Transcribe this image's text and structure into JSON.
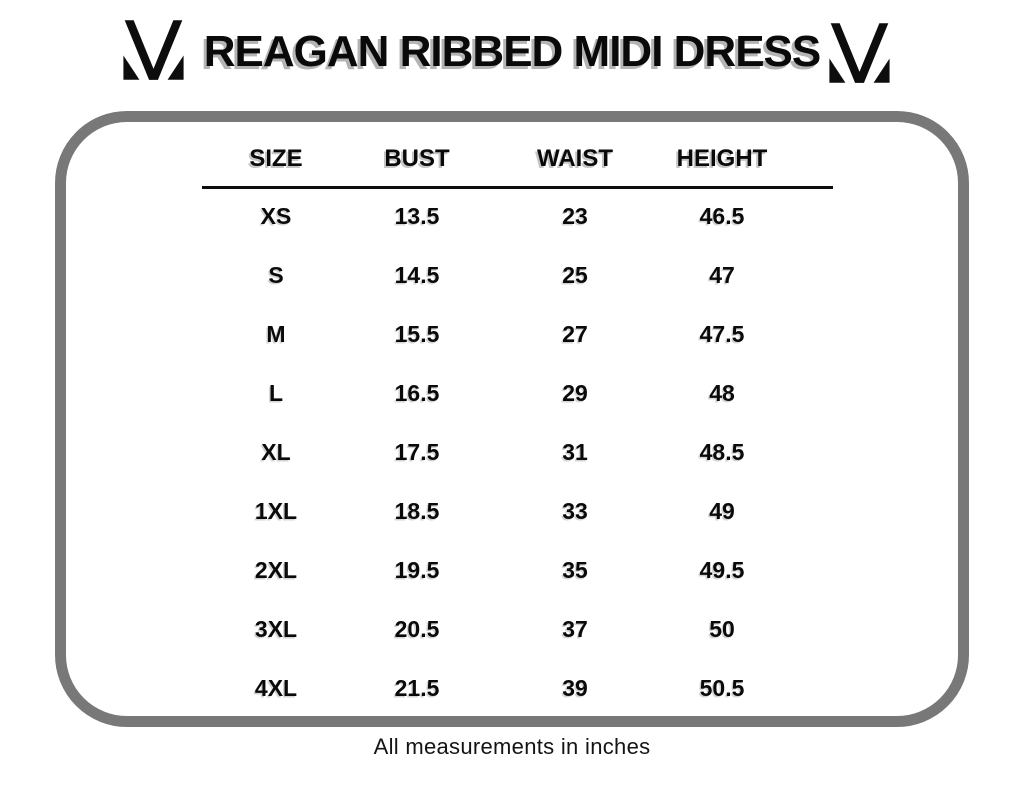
{
  "title": "REAGAN RIBBED MIDI DRESS",
  "footnote": "All measurements in inches",
  "logo": {
    "icon": "brand-v-mark-icon",
    "color": "#0d0d0d"
  },
  "colors": {
    "panel_border": "#787878",
    "text": "#0a0a0a",
    "title_shadow": "#b4b4b4",
    "background": "#ffffff"
  },
  "table": {
    "headers": [
      "SIZE",
      "BUST",
      "WAIST",
      "HEIGHT"
    ],
    "rows": [
      [
        "XS",
        "13.5",
        "23",
        "46.5"
      ],
      [
        "S",
        "14.5",
        "25",
        "47"
      ],
      [
        "M",
        "15.5",
        "27",
        "47.5"
      ],
      [
        "L",
        "16.5",
        "29",
        "48"
      ],
      [
        "XL",
        "17.5",
        "31",
        "48.5"
      ],
      [
        "1XL",
        "18.5",
        "33",
        "49"
      ],
      [
        "2XL",
        "19.5",
        "35",
        "49.5"
      ],
      [
        "3XL",
        "20.5",
        "37",
        "50"
      ],
      [
        "4XL",
        "21.5",
        "39",
        "50.5"
      ]
    ]
  },
  "chart_data": {
    "type": "table",
    "title": "REAGAN RIBBED MIDI DRESS",
    "columns": [
      "SIZE",
      "BUST",
      "WAIST",
      "HEIGHT"
    ],
    "categories": [
      "XS",
      "S",
      "M",
      "L",
      "XL",
      "1XL",
      "2XL",
      "3XL",
      "4XL"
    ],
    "series": [
      {
        "name": "BUST",
        "values": [
          13.5,
          14.5,
          15.5,
          16.5,
          17.5,
          18.5,
          19.5,
          20.5,
          21.5
        ]
      },
      {
        "name": "WAIST",
        "values": [
          23,
          25,
          27,
          29,
          31,
          33,
          35,
          37,
          39
        ]
      },
      {
        "name": "HEIGHT",
        "values": [
          46.5,
          47,
          47.5,
          48,
          48.5,
          49,
          49.5,
          50,
          50.5
        ]
      }
    ],
    "units": "inches",
    "note": "All measurements in inches"
  }
}
